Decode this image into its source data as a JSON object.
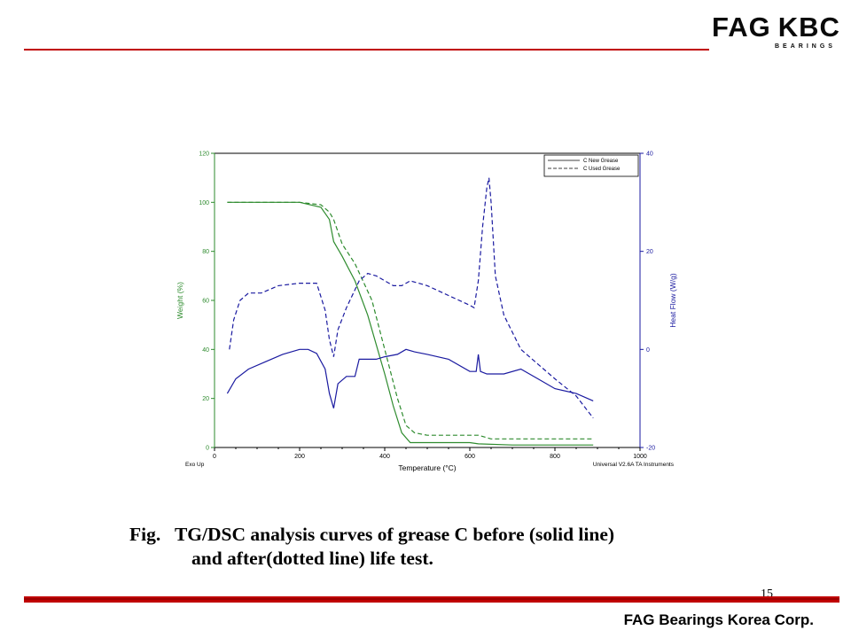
{
  "logo": {
    "fag": "FAG",
    "kbc": "KBC",
    "sub": "BEARINGS"
  },
  "caption": {
    "line1": "Fig.   TG/DSC analysis curves of grease C before (solid line)",
    "line2": "and after(dotted line) life test."
  },
  "page_number": "15",
  "footer": {
    "company": "FAG Bearings Korea Corp."
  },
  "colors": {
    "accent_red": "#c00000",
    "weight_green": "#2e8b2e",
    "heat_blue": "#1a1aa0"
  },
  "chart_data": {
    "type": "line",
    "xlabel": "Temperature (°C)",
    "ylabel_left": "Weight (%)",
    "ylabel_right": "Heat Flow (W/g)",
    "xlim": [
      0,
      1000
    ],
    "ylim_left": [
      0,
      120
    ],
    "ylim_right": [
      -20,
      40
    ],
    "x_ticks": [
      0,
      200,
      400,
      600,
      800,
      1000
    ],
    "y_left_ticks": [
      0,
      20,
      40,
      60,
      80,
      100,
      120
    ],
    "y_right_ticks": [
      -20,
      0,
      20,
      40
    ],
    "corner_left": "Exo Up",
    "corner_right": "Universal V2.6A TA Instruments",
    "legend_position": "top-right",
    "legend": [
      {
        "label": "C  New Grease",
        "style": "solid"
      },
      {
        "label": "C  Used Grease",
        "style": "dashed"
      }
    ],
    "series": [
      {
        "axis": "left",
        "color": "#2e8b2e",
        "style": "solid",
        "x": [
          30,
          100,
          200,
          250,
          270,
          280,
          300,
          330,
          360,
          400,
          420,
          440,
          460,
          500,
          600,
          620,
          700,
          800,
          890
        ],
        "y": [
          100,
          100,
          100,
          98,
          93,
          84,
          78,
          68,
          54,
          30,
          17,
          6,
          2,
          2,
          2,
          1.5,
          1,
          1,
          1
        ]
      },
      {
        "axis": "left",
        "color": "#2e8b2e",
        "style": "dashed",
        "x": [
          30,
          100,
          200,
          250,
          270,
          280,
          300,
          330,
          370,
          400,
          430,
          450,
          470,
          500,
          600,
          620,
          650,
          700,
          800,
          890
        ],
        "y": [
          100,
          100,
          100,
          99,
          96,
          93,
          83,
          75,
          60,
          40,
          20,
          9,
          6,
          5,
          5,
          5,
          3.5,
          3.5,
          3.5,
          3.5
        ]
      },
      {
        "axis": "right",
        "color": "#1a1aa0",
        "style": "solid",
        "x": [
          30,
          50,
          80,
          120,
          160,
          200,
          220,
          240,
          260,
          270,
          280,
          290,
          310,
          330,
          340,
          350,
          380,
          400,
          430,
          450,
          470,
          500,
          550,
          600,
          615,
          620,
          625,
          640,
          680,
          720,
          760,
          800,
          850,
          890
        ],
        "y": [
          -9,
          -6,
          -4,
          -2.5,
          -1,
          0,
          0,
          -0.8,
          -4,
          -9,
          -12,
          -7,
          -5.5,
          -5.5,
          -2,
          -2,
          -2,
          -1.5,
          -1,
          0,
          -0.5,
          -1,
          -2,
          -4.5,
          -4.5,
          -1,
          -4.5,
          -5,
          -5,
          -4,
          -6,
          -8,
          -9,
          -10.5
        ]
      },
      {
        "axis": "right",
        "color": "#1a1aa0",
        "style": "dashed",
        "x": [
          35,
          45,
          60,
          80,
          110,
          150,
          200,
          240,
          260,
          270,
          280,
          290,
          310,
          340,
          360,
          380,
          420,
          440,
          460,
          500,
          550,
          600,
          610,
          620,
          630,
          640,
          645,
          650,
          660,
          680,
          720,
          760,
          800,
          850,
          890
        ],
        "y": [
          0,
          6,
          10,
          11.5,
          11.5,
          13,
          13.5,
          13.5,
          8,
          2,
          -1.5,
          4,
          8.5,
          14,
          15.5,
          15,
          13,
          13,
          14,
          13,
          11,
          9,
          8.5,
          14,
          25,
          33,
          35,
          30,
          15,
          7,
          0,
          -3,
          -6,
          -9.5,
          -14
        ]
      }
    ]
  }
}
